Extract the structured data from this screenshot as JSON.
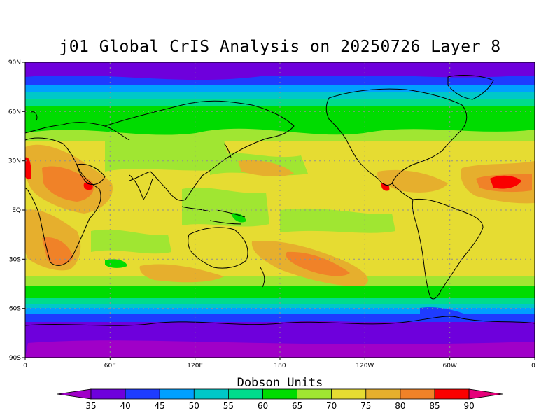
{
  "title": "j01 Global CrIS Analysis on 20250726 Layer 8",
  "colorbar": {
    "label": "Dobson Units",
    "ticks": [
      "35",
      "40",
      "45",
      "50",
      "55",
      "60",
      "65",
      "70",
      "75",
      "80",
      "85",
      "90"
    ],
    "colors": [
      "#a000c8",
      "#6e00dc",
      "#1e3cff",
      "#00a0ff",
      "#00c8c8",
      "#00dc8c",
      "#00dc00",
      "#a0e632",
      "#e6dc32",
      "#e6af2d",
      "#f08228",
      "#fa0000",
      "#e6007a"
    ]
  },
  "map": {
    "x_ticks": [
      "0",
      "60E",
      "120E",
      "180",
      "120W",
      "60W",
      "0"
    ],
    "y_ticks": [
      "90N",
      "60N",
      "30N",
      "EQ",
      "30S",
      "60S",
      "90S"
    ],
    "gridlines": true
  }
}
